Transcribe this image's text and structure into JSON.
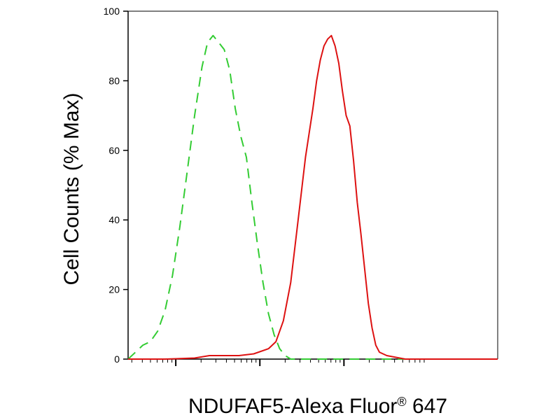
{
  "chart_data": {
    "type": "line",
    "title": "",
    "xlabel": "NDUFAF5-Alexa Fluor",
    "xlabel_superscript": "®",
    "xlabel_suffix": " 647",
    "ylabel": "Cell Counts (% Max)",
    "x_scale": "log",
    "x_tick_labels": [],
    "ylim": [
      0,
      100
    ],
    "yticks": [
      0,
      20,
      40,
      60,
      80,
      100
    ],
    "ytick_labels": [
      "0",
      "20",
      "40",
      "60",
      "80",
      "100"
    ],
    "grid": false,
    "legend": "none",
    "colors": {
      "axis": "#000000",
      "series_1": "#33cc33",
      "series_2": "#dd1111"
    },
    "series": [
      {
        "line_style": "dashed",
        "points": [
          [
            0.0,
            0
          ],
          [
            0.02,
            2
          ],
          [
            0.04,
            4
          ],
          [
            0.06,
            5
          ],
          [
            0.08,
            8
          ],
          [
            0.1,
            14
          ],
          [
            0.12,
            24
          ],
          [
            0.14,
            38
          ],
          [
            0.16,
            54
          ],
          [
            0.18,
            70
          ],
          [
            0.2,
            84
          ],
          [
            0.215,
            91
          ],
          [
            0.23,
            93
          ],
          [
            0.245,
            91
          ],
          [
            0.26,
            89
          ],
          [
            0.275,
            83
          ],
          [
            0.29,
            72
          ],
          [
            0.305,
            64
          ],
          [
            0.32,
            58
          ],
          [
            0.335,
            45
          ],
          [
            0.35,
            33
          ],
          [
            0.365,
            22
          ],
          [
            0.38,
            13
          ],
          [
            0.395,
            7
          ],
          [
            0.41,
            3
          ],
          [
            0.425,
            1
          ],
          [
            0.44,
            0
          ],
          [
            0.6,
            0
          ],
          [
            0.75,
            0
          ],
          [
            1.0,
            0
          ]
        ]
      },
      {
        "line_style": "solid",
        "points": [
          [
            0.0,
            0
          ],
          [
            0.1,
            0
          ],
          [
            0.18,
            0.3
          ],
          [
            0.22,
            1
          ],
          [
            0.3,
            1
          ],
          [
            0.34,
            1.5
          ],
          [
            0.38,
            3
          ],
          [
            0.4,
            5
          ],
          [
            0.42,
            11
          ],
          [
            0.44,
            22
          ],
          [
            0.46,
            40
          ],
          [
            0.48,
            58
          ],
          [
            0.49,
            65
          ],
          [
            0.5,
            72
          ],
          [
            0.51,
            80
          ],
          [
            0.52,
            86
          ],
          [
            0.53,
            90
          ],
          [
            0.54,
            92
          ],
          [
            0.55,
            93
          ],
          [
            0.56,
            90
          ],
          [
            0.57,
            85
          ],
          [
            0.58,
            77
          ],
          [
            0.59,
            70
          ],
          [
            0.6,
            67
          ],
          [
            0.61,
            57
          ],
          [
            0.62,
            45
          ],
          [
            0.63,
            36
          ],
          [
            0.64,
            26
          ],
          [
            0.65,
            16
          ],
          [
            0.66,
            9
          ],
          [
            0.67,
            4
          ],
          [
            0.68,
            2
          ],
          [
            0.7,
            1
          ],
          [
            0.75,
            0
          ],
          [
            0.85,
            0
          ],
          [
            1.0,
            0
          ]
        ]
      }
    ]
  }
}
